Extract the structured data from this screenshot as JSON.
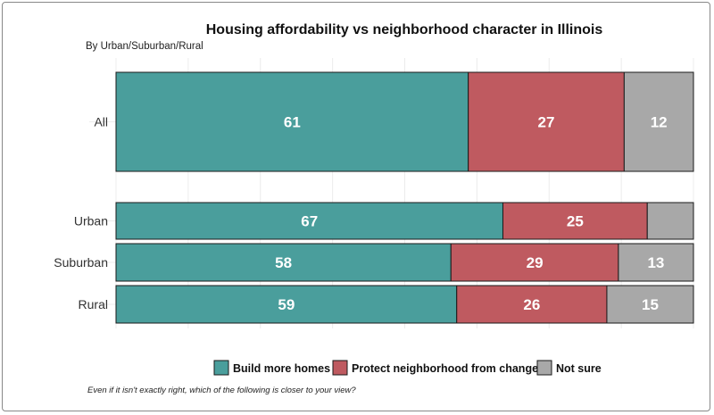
{
  "chart_data": {
    "type": "bar",
    "orientation": "horizontal",
    "stacked": true,
    "title": "Housing affordability vs neighborhood character in Illinois",
    "subtitle": "By Urban/Suburban/Rural",
    "categories": [
      "All",
      "Urban",
      "Suburban",
      "Rural"
    ],
    "series": [
      {
        "name": "Build more homes",
        "values": [
          61,
          67,
          58,
          59
        ],
        "labels": [
          "61",
          "67",
          "58",
          "59"
        ],
        "color": "#4a9e9c"
      },
      {
        "name": "Protect neighborhood from change",
        "values": [
          27,
          25,
          29,
          26
        ],
        "labels": [
          "27",
          "25",
          "29",
          "26"
        ],
        "color": "#bf5a60"
      },
      {
        "name": "Not sure",
        "values": [
          12,
          8,
          13,
          15
        ],
        "labels": [
          "12",
          "",
          "13",
          "15"
        ],
        "color": "#a8a8a8"
      }
    ],
    "xlim": [
      0,
      100
    ],
    "grid": true,
    "legend": "bottom",
    "note": "Even if it isn't exactly right, which of the following is closer to your view?"
  }
}
